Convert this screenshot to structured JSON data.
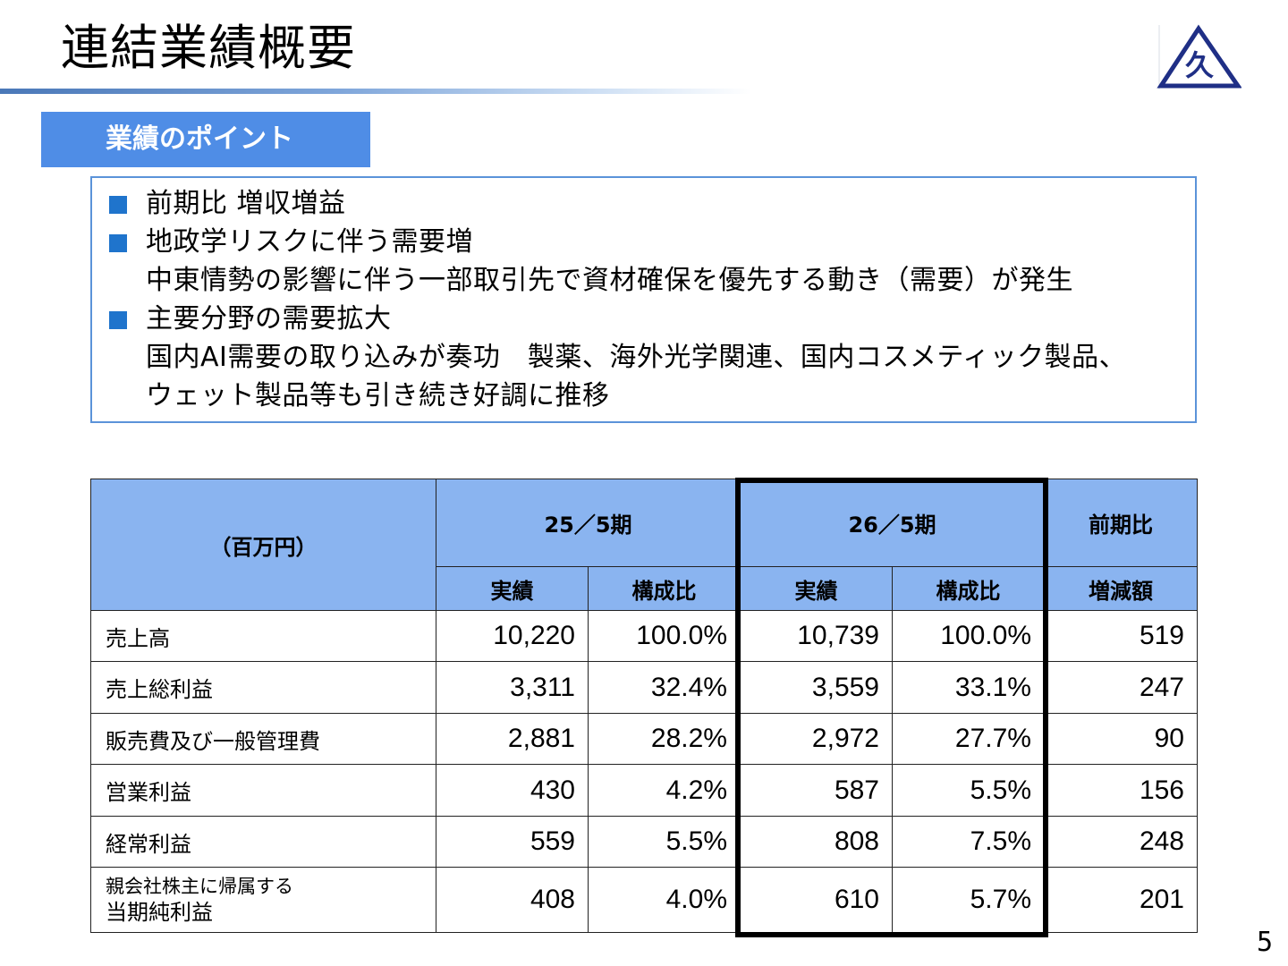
{
  "header": {
    "title": "連結業績概要"
  },
  "logo": {
    "glyph": "久",
    "color": "#1f2f86"
  },
  "section": {
    "title": "業績のポイント"
  },
  "points": [
    {
      "bullet": true,
      "text": "前期比 増収増益"
    },
    {
      "bullet": true,
      "text": "地政学リスクに伴う需要増"
    },
    {
      "bullet": false,
      "text": "中東情勢の影響に伴う一部取引先で資材確保を優先する動き（需要）が発生"
    },
    {
      "bullet": true,
      "text": "主要分野の需要拡大"
    },
    {
      "bullet": false,
      "text": "国内AI需要の取り込みが奏功　製薬、海外光学関連、国内コスメティック製品、"
    },
    {
      "bullet": false,
      "text": "ウェット製品等も引き続き好調に推移"
    }
  ],
  "table": {
    "unit_header": "（百万円）",
    "period_prev": "25／5期",
    "period_curr": "26／5期",
    "compare_header": "前期比",
    "col_actual": "実績",
    "col_ratio": "構成比",
    "col_change": "増減額",
    "rows": [
      {
        "label": "売上高",
        "prev_actual": "10,220",
        "prev_ratio": "100.0%",
        "curr_actual": "10,739",
        "curr_ratio": "100.0%",
        "change": "519"
      },
      {
        "label": "売上総利益",
        "prev_actual": "3,311",
        "prev_ratio": "32.4%",
        "curr_actual": "3,559",
        "curr_ratio": "33.1%",
        "change": "247"
      },
      {
        "label": "販売費及び一般管理費",
        "prev_actual": "2,881",
        "prev_ratio": "28.2%",
        "curr_actual": "2,972",
        "curr_ratio": "27.7%",
        "change": "90"
      },
      {
        "label": "営業利益",
        "prev_actual": "430",
        "prev_ratio": "4.2%",
        "curr_actual": "587",
        "curr_ratio": "5.5%",
        "change": "156"
      },
      {
        "label": "経常利益",
        "prev_actual": "559",
        "prev_ratio": "5.5%",
        "curr_actual": "808",
        "curr_ratio": "7.5%",
        "change": "248"
      },
      {
        "label_line1": "親会社株主に帰属する",
        "label_line2": "当期純利益",
        "prev_actual": "408",
        "prev_ratio": "4.0%",
        "curr_actual": "610",
        "curr_ratio": "5.7%",
        "change": "201"
      }
    ]
  },
  "footer": {
    "page_number": "5"
  }
}
